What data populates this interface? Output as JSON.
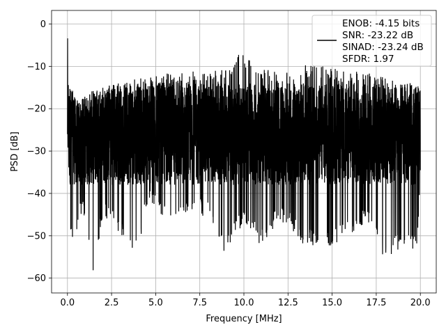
{
  "chart_data": {
    "type": "line",
    "title": "",
    "xlabel": "Frequency [MHz]",
    "ylabel": "PSD [dB]",
    "xlim": [
      -0.9,
      20.9
    ],
    "ylim": [
      -63.5,
      3.2
    ],
    "xticks": [
      0.0,
      2.5,
      5.0,
      7.5,
      10.0,
      12.5,
      15.0,
      17.5,
      20.0
    ],
    "xtick_labels": [
      "0.0",
      "2.5",
      "5.0",
      "7.5",
      "10.0",
      "12.5",
      "15.0",
      "17.5",
      "20.0"
    ],
    "yticks": [
      0,
      -10,
      -20,
      -30,
      -40,
      -50,
      -60
    ],
    "ytick_labels": [
      "0",
      "−10",
      "−20",
      "−30",
      "−40",
      "−50",
      "−60"
    ],
    "grid": true,
    "legend_position": "top-right",
    "legend_lines": [
      "ENOB: -4.15 bits",
      "SNR: -23.22 dB",
      "SINAD: -23.24 dB",
      "SFDR: 1.97"
    ],
    "series": [
      {
        "color": "#000000",
        "description_of_shape": "dense noise floor across 0 to 20 MHz",
        "upper_envelope": [
          [
            0.0,
            -1.0
          ],
          [
            0.05,
            -13.0
          ],
          [
            0.5,
            -18.0
          ],
          [
            1.0,
            -17.0
          ],
          [
            1.5,
            -15.5
          ],
          [
            2.0,
            -15.0
          ],
          [
            3.0,
            -13.5
          ],
          [
            4.0,
            -13.0
          ],
          [
            5.0,
            -12.0
          ],
          [
            6.0,
            -11.5
          ],
          [
            7.0,
            -11.0
          ],
          [
            8.0,
            -11.5
          ],
          [
            9.0,
            -10.0
          ],
          [
            9.9,
            -6.5
          ],
          [
            10.5,
            -9.0
          ],
          [
            11.0,
            -10.5
          ],
          [
            12.0,
            -11.0
          ],
          [
            13.0,
            -10.0
          ],
          [
            14.0,
            -9.5
          ],
          [
            15.0,
            -10.5
          ],
          [
            16.0,
            -11.0
          ],
          [
            17.0,
            -11.0
          ],
          [
            18.0,
            -12.0
          ],
          [
            19.0,
            -13.0
          ],
          [
            20.0,
            -15.0
          ]
        ],
        "lower_envelope": [
          [
            0.0,
            -25.0
          ],
          [
            0.1,
            -50.0
          ],
          [
            0.4,
            -52.5
          ],
          [
            0.8,
            -45.0
          ],
          [
            1.0,
            -46.0
          ],
          [
            1.5,
            -60.7
          ],
          [
            2.0,
            -45.0
          ],
          [
            3.6,
            -52.5
          ],
          [
            4.05,
            -55.0
          ],
          [
            4.5,
            -43.0
          ],
          [
            5.0,
            -43.0
          ],
          [
            6.0,
            -49.0
          ],
          [
            7.0,
            -44.0
          ],
          [
            8.0,
            -46.0
          ],
          [
            8.9,
            -54.0
          ],
          [
            10.0,
            -47.0
          ],
          [
            11.0,
            -52.5
          ],
          [
            12.0,
            -46.0
          ],
          [
            13.5,
            -52.5
          ],
          [
            14.9,
            -53.0
          ],
          [
            16.0,
            -50.0
          ],
          [
            17.0,
            -47.0
          ],
          [
            18.1,
            -56.5
          ],
          [
            19.0,
            -52.0
          ],
          [
            19.8,
            -53.5
          ],
          [
            20.0,
            -40.0
          ]
        ]
      }
    ]
  }
}
